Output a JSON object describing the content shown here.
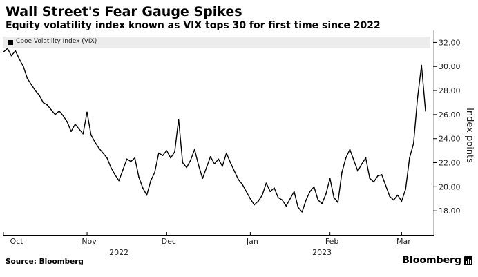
{
  "header": {
    "title": "Wall Street's Fear Gauge Spikes",
    "subtitle": "Equity volatility index known as VIX tops 30 for first time since 2022"
  },
  "footer": {
    "source": "Source: Bloomberg",
    "brand": "Bloomberg"
  },
  "colors": {
    "line": "#000000",
    "legend_bg": "#ececec",
    "grid": "#bfbfbf"
  },
  "chart_data": {
    "type": "line",
    "title": "Wall Street's Fear Gauge Spikes",
    "subtitle": "Equity volatility index known as VIX tops 30 for first time since 2022",
    "ylabel": "Index points",
    "ylim": [
      16.0,
      33.0
    ],
    "yticks": [
      18.0,
      20.0,
      22.0,
      24.0,
      26.0,
      28.0,
      30.0,
      32.0
    ],
    "ytick_labels": [
      "18.00",
      "20.00",
      "22.00",
      "24.00",
      "26.00",
      "28.00",
      "30.00",
      "32.00"
    ],
    "month_labels": [
      "Oct",
      "Nov",
      "Dec",
      "Jan",
      "Feb",
      "Mar"
    ],
    "month_index": [
      0,
      21,
      41,
      62,
      82,
      100
    ],
    "year_labels": [
      {
        "label": "2022",
        "index": 29
      },
      {
        "label": "2023",
        "index": 80
      }
    ],
    "legend_position": "top-left",
    "series": [
      {
        "name": "Cboe Volatility Index (VIX)",
        "values": [
          31.2,
          31.5,
          30.9,
          31.3,
          30.6,
          30.0,
          29.0,
          28.5,
          28.0,
          27.6,
          27.0,
          26.8,
          26.4,
          26.0,
          26.3,
          25.9,
          25.4,
          24.6,
          25.2,
          24.8,
          24.4,
          26.2,
          24.3,
          23.7,
          23.2,
          22.8,
          22.4,
          21.6,
          21.0,
          20.5,
          21.4,
          22.3,
          22.1,
          22.4,
          20.8,
          19.9,
          19.3,
          20.5,
          21.2,
          22.8,
          22.6,
          23.0,
          22.4,
          22.9,
          25.6,
          22.0,
          21.6,
          22.2,
          23.1,
          21.8,
          20.7,
          21.6,
          22.5,
          21.9,
          22.3,
          21.7,
          22.8,
          22.0,
          21.3,
          20.6,
          20.2,
          19.6,
          19.0,
          18.5,
          18.8,
          19.3,
          20.3,
          19.6,
          19.9,
          19.1,
          18.9,
          18.4,
          19.0,
          19.6,
          18.3,
          17.9,
          18.9,
          19.6,
          20.0,
          18.9,
          18.6,
          19.4,
          20.7,
          19.1,
          18.7,
          21.2,
          22.4,
          23.1,
          22.2,
          21.3,
          21.9,
          22.4,
          20.7,
          20.4,
          20.9,
          21.0,
          20.1,
          19.2,
          18.9,
          19.3,
          18.8,
          19.8,
          22.4,
          23.6,
          27.4,
          30.1,
          26.3
        ]
      }
    ]
  }
}
